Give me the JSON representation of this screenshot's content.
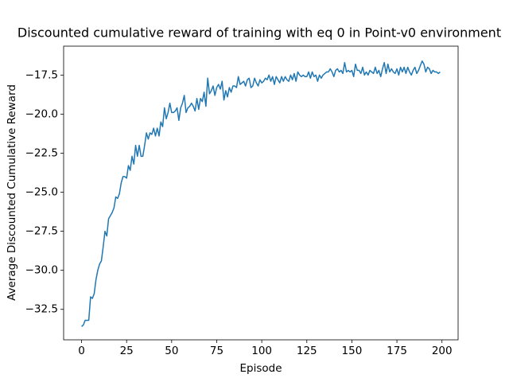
{
  "chart_data": {
    "type": "line",
    "title": "Discounted cumulative reward of training with eq 0 in Point-v0 environment",
    "xlabel": "Episode",
    "ylabel": "Average Discounted Cumulative Reward",
    "xlim": [
      -9.95,
      208.95
    ],
    "ylim": [
      -34.45,
      -15.65
    ],
    "xticks": [
      0,
      25,
      50,
      75,
      100,
      125,
      150,
      175,
      200
    ],
    "yticks": [
      {
        "value": -32.5,
        "label": "−32.5"
      },
      {
        "value": -30.0,
        "label": "−30.0"
      },
      {
        "value": -27.5,
        "label": "−27.5"
      },
      {
        "value": -25.0,
        "label": "−25.0"
      },
      {
        "value": -22.5,
        "label": "−22.5"
      },
      {
        "value": -20.0,
        "label": "−20.0"
      },
      {
        "value": -17.5,
        "label": "−17.5"
      }
    ],
    "grid": false,
    "x": [
      0,
      1,
      2,
      3,
      4,
      5,
      6,
      7,
      8,
      9,
      10,
      11,
      12,
      13,
      14,
      15,
      16,
      17,
      18,
      19,
      20,
      21,
      22,
      23,
      24,
      25,
      26,
      27,
      28,
      29,
      30,
      31,
      32,
      33,
      34,
      35,
      36,
      37,
      38,
      39,
      40,
      41,
      42,
      43,
      44,
      45,
      46,
      47,
      48,
      49,
      50,
      51,
      52,
      53,
      54,
      55,
      56,
      57,
      58,
      59,
      60,
      61,
      62,
      63,
      64,
      65,
      66,
      67,
      68,
      69,
      70,
      71,
      72,
      73,
      74,
      75,
      76,
      77,
      78,
      79,
      80,
      81,
      82,
      83,
      84,
      85,
      86,
      87,
      88,
      89,
      90,
      91,
      92,
      93,
      94,
      95,
      96,
      97,
      98,
      99,
      100,
      101,
      102,
      103,
      104,
      105,
      106,
      107,
      108,
      109,
      110,
      111,
      112,
      113,
      114,
      115,
      116,
      117,
      118,
      119,
      120,
      121,
      122,
      123,
      124,
      125,
      126,
      127,
      128,
      129,
      130,
      131,
      132,
      133,
      134,
      135,
      136,
      137,
      138,
      139,
      140,
      141,
      142,
      143,
      144,
      145,
      146,
      147,
      148,
      149,
      150,
      151,
      152,
      153,
      154,
      155,
      156,
      157,
      158,
      159,
      160,
      161,
      162,
      163,
      164,
      165,
      166,
      167,
      168,
      169,
      170,
      171,
      172,
      173,
      174,
      175,
      176,
      177,
      178,
      179,
      180,
      181,
      182,
      183,
      184,
      185,
      186,
      187,
      188,
      189,
      190,
      191,
      192,
      193,
      194,
      195,
      196,
      197,
      198,
      199
    ],
    "series": [
      {
        "color": "#1f77b4",
        "values": [
          -33.6,
          -33.5,
          -33.2,
          -33.2,
          -33.2,
          -31.7,
          -31.8,
          -31.5,
          -30.6,
          -30.0,
          -29.6,
          -29.4,
          -28.5,
          -27.5,
          -27.8,
          -26.7,
          -26.5,
          -26.3,
          -26.0,
          -25.3,
          -25.4,
          -25.1,
          -24.4,
          -24.0,
          -24.0,
          -24.1,
          -23.3,
          -23.6,
          -22.7,
          -23.2,
          -22.0,
          -22.7,
          -22.0,
          -22.7,
          -22.7,
          -22.0,
          -21.2,
          -21.6,
          -21.2,
          -21.3,
          -20.9,
          -21.4,
          -20.9,
          -21.4,
          -20.5,
          -20.8,
          -19.6,
          -20.3,
          -19.9,
          -19.3,
          -19.9,
          -19.9,
          -19.8,
          -19.6,
          -20.4,
          -19.6,
          -19.3,
          -18.8,
          -19.9,
          -19.6,
          -19.5,
          -19.3,
          -19.5,
          -19.8,
          -19.0,
          -19.7,
          -19.0,
          -19.2,
          -18.6,
          -19.5,
          -17.7,
          -18.7,
          -18.5,
          -18.2,
          -18.8,
          -18.3,
          -18.1,
          -18.4,
          -17.9,
          -19.1,
          -18.5,
          -18.9,
          -18.3,
          -18.6,
          -18.2,
          -18.2,
          -18.3,
          -17.6,
          -18.1,
          -18.0,
          -17.9,
          -18.2,
          -17.8,
          -17.7,
          -18.3,
          -18.2,
          -17.7,
          -18.0,
          -18.2,
          -17.8,
          -18.0,
          -17.9,
          -17.7,
          -17.8,
          -17.5,
          -17.9,
          -17.6,
          -18.1,
          -17.6,
          -17.8,
          -18.0,
          -17.6,
          -17.9,
          -17.6,
          -17.8,
          -17.9,
          -17.5,
          -17.8,
          -17.4,
          -17.9,
          -17.3,
          -17.5,
          -17.6,
          -17.5,
          -17.6,
          -17.6,
          -17.3,
          -17.7,
          -17.3,
          -17.6,
          -17.5,
          -17.9,
          -17.5,
          -17.7,
          -17.5,
          -17.4,
          -17.3,
          -17.3,
          -17.1,
          -17.3,
          -17.6,
          -17.2,
          -17.1,
          -17.3,
          -17.2,
          -17.4,
          -16.7,
          -17.3,
          -17.2,
          -17.3,
          -17.2,
          -17.6,
          -16.8,
          -17.2,
          -17.2,
          -17.4,
          -17.0,
          -17.5,
          -17.3,
          -17.5,
          -17.2,
          -17.3,
          -17.4,
          -17.0,
          -17.4,
          -17.2,
          -17.6,
          -17.1,
          -16.7,
          -17.4,
          -16.8,
          -17.3,
          -17.1,
          -17.3,
          -17.4,
          -17.1,
          -17.5,
          -17.0,
          -17.3,
          -17.0,
          -17.4,
          -17.0,
          -17.3,
          -17.5,
          -17.2,
          -17.0,
          -17.4,
          -17.2,
          -16.9,
          -16.6,
          -16.8,
          -17.3,
          -17.0,
          -17.1,
          -17.4,
          -17.2,
          -17.3,
          -17.3,
          -17.4,
          -17.3
        ]
      }
    ]
  }
}
